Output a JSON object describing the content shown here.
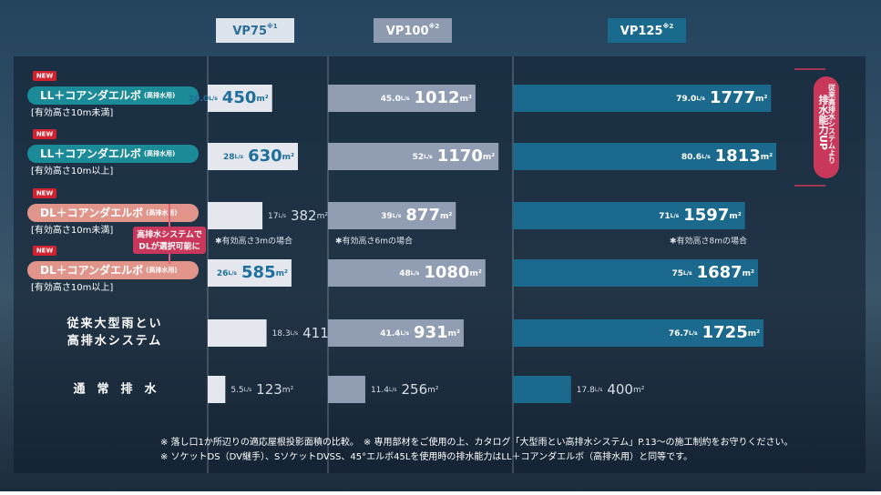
{
  "rows": [
    {
      "badge": "NEW",
      "name": "LL＋コアンダエルボ",
      "tag": "(高排水用)",
      "sub": "[有効高さ10m未満]"
    },
    {
      "badge": "NEW",
      "name": "LL＋コアンダエルボ",
      "tag": "(高排水用)",
      "sub": "[有効高さ10m以上]"
    },
    {
      "badge": "NEW",
      "name": "DL＋コアンダエルボ",
      "tag": "(高排水用)",
      "sub": "[有効高さ10m未満]"
    },
    {
      "badge": "NEW",
      "name": "DL＋コアンダエルボ",
      "tag": "(高排水用)",
      "sub": "[有効高さ10m以上]"
    },
    {
      "name": "従来大型雨とい",
      "name2": "高排水システム"
    },
    {
      "name": "通　常　排　水"
    }
  ],
  "callout": [
    "高排水システムで",
    "DLが選択可能に"
  ],
  "side_badge": [
    "従来高排水システムより",
    "排水能力UP"
  ],
  "footnotes": [
    "※ 落し口1か所辺りの適応屋根投影面積の比較。　※ 専用部材をご使用の上、カタログ「大型雨とい高排水システム」P.13～の施工制約をお守りください。",
    "※ ソケットDS（DV継手）、SソケットDVSS、45°エルボ45Lを使用時の排水能力はLL＋コアンダエルボ（高排水用）と同等です。"
  ],
  "chart_data": [
    {
      "type": "bar",
      "title": "VP75",
      "title_note": "※1",
      "unit": "m²",
      "flow_unit": "L/s",
      "values": [
        450,
        630,
        382,
        585,
        411,
        123
      ],
      "flows": [
        20,
        28,
        17,
        26,
        18.3,
        5.5
      ],
      "flow_labels": [
        "20.0",
        "28",
        "17",
        "26",
        "18.3",
        "5.5"
      ],
      "note": "✱有効高さ3mの場合",
      "color": "#e4e7ed",
      "label_color": "#1f6f9c",
      "head_bg": "#dde3ea",
      "head_fg": "#2a6d98",
      "xlim": [
        0,
        700
      ]
    },
    {
      "type": "bar",
      "title": "VP100",
      "title_note": "※2",
      "unit": "m²",
      "flow_unit": "L/s",
      "values": [
        1012,
        1170,
        877,
        1080,
        931,
        256
      ],
      "flows": [
        45,
        52,
        39,
        48,
        41.4,
        11.4
      ],
      "flow_labels": [
        "45.0",
        "52",
        "39",
        "48",
        "41.4",
        "11.4"
      ],
      "note": "✱有効高さ6mの場合",
      "color": "#909db3",
      "label_color": "#ffffff",
      "head_bg": "#8d9ab0",
      "head_fg": "#ffffff",
      "xlim": [
        0,
        1250
      ]
    },
    {
      "type": "bar",
      "title": "VP125",
      "title_note": "※2",
      "unit": "m²",
      "flow_unit": "L/s",
      "values": [
        1777,
        1813,
        1597,
        1687,
        1725,
        400
      ],
      "flows": [
        79,
        80.6,
        71,
        75,
        76.7,
        17.8
      ],
      "flow_labels": [
        "79.0",
        "80.6",
        "71",
        "75",
        "76.7",
        "17.8"
      ],
      "note": "✱有効高さ8mの場合",
      "color": "#1b6a8e",
      "label_color": "#ffffff",
      "head_bg": "#1a6a8e",
      "head_fg": "#ffffff",
      "xlim": [
        0,
        1850
      ]
    }
  ]
}
